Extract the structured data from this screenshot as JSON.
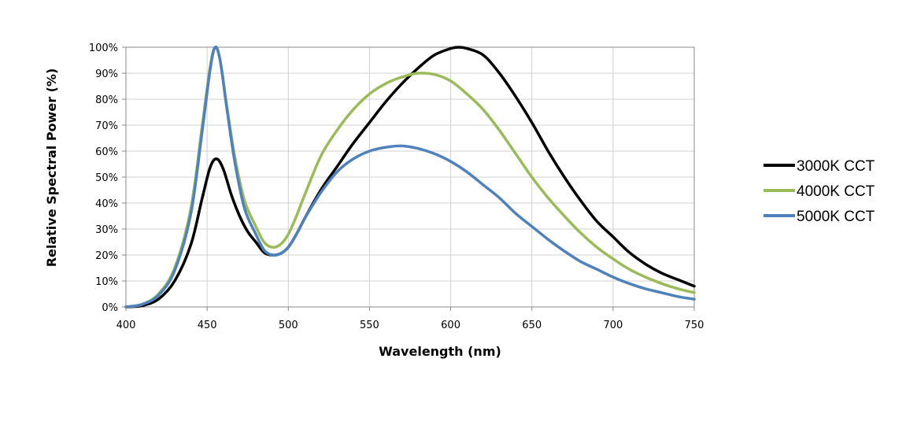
{
  "chart_data": {
    "type": "line",
    "title": "",
    "xlabel": "Wavelength (nm)",
    "ylabel": "Relative Spectral Power (%)",
    "xlim": [
      400,
      750
    ],
    "ylim": [
      0,
      100
    ],
    "x_ticks": [
      "400",
      "450",
      "500",
      "550",
      "600",
      "650",
      "700",
      "750"
    ],
    "y_ticks": [
      "0%",
      "10%",
      "20%",
      "30%",
      "40%",
      "50%",
      "60%",
      "70%",
      "80%",
      "90%",
      "100%"
    ],
    "grid": true,
    "legend_position": "right",
    "series": [
      {
        "name": "3000K CCT",
        "color": "#000000",
        "points": [
          [
            400,
            0
          ],
          [
            410,
            0.5
          ],
          [
            420,
            3
          ],
          [
            430,
            10
          ],
          [
            440,
            24
          ],
          [
            447,
            42
          ],
          [
            452,
            54
          ],
          [
            456,
            57
          ],
          [
            460,
            53
          ],
          [
            465,
            43
          ],
          [
            470,
            35
          ],
          [
            475,
            29
          ],
          [
            480,
            25
          ],
          [
            485,
            21
          ],
          [
            490,
            20
          ],
          [
            495,
            20.5
          ],
          [
            500,
            23
          ],
          [
            505,
            28
          ],
          [
            510,
            34
          ],
          [
            520,
            45
          ],
          [
            530,
            54
          ],
          [
            540,
            63
          ],
          [
            550,
            71
          ],
          [
            560,
            79
          ],
          [
            570,
            86
          ],
          [
            580,
            92
          ],
          [
            590,
            97
          ],
          [
            600,
            99.5
          ],
          [
            605,
            100
          ],
          [
            610,
            99.5
          ],
          [
            620,
            97
          ],
          [
            630,
            90
          ],
          [
            640,
            81
          ],
          [
            650,
            71
          ],
          [
            660,
            60
          ],
          [
            670,
            50
          ],
          [
            680,
            41
          ],
          [
            690,
            33
          ],
          [
            700,
            27
          ],
          [
            710,
            21
          ],
          [
            720,
            16.5
          ],
          [
            730,
            13
          ],
          [
            740,
            10.5
          ],
          [
            750,
            8
          ]
        ]
      },
      {
        "name": "4000K CCT",
        "color": "#9BBB59",
        "points": [
          [
            400,
            0
          ],
          [
            410,
            1
          ],
          [
            420,
            5
          ],
          [
            430,
            15
          ],
          [
            440,
            38
          ],
          [
            447,
            70
          ],
          [
            452,
            93
          ],
          [
            455,
            100
          ],
          [
            458,
            95
          ],
          [
            462,
            78
          ],
          [
            467,
            58
          ],
          [
            473,
            41
          ],
          [
            480,
            31
          ],
          [
            485,
            25
          ],
          [
            490,
            23
          ],
          [
            495,
            24
          ],
          [
            500,
            28
          ],
          [
            505,
            35
          ],
          [
            510,
            43
          ],
          [
            520,
            58
          ],
          [
            530,
            68
          ],
          [
            540,
            76
          ],
          [
            550,
            82
          ],
          [
            560,
            86
          ],
          [
            570,
            88.5
          ],
          [
            580,
            90
          ],
          [
            590,
            89.5
          ],
          [
            600,
            87
          ],
          [
            610,
            82
          ],
          [
            620,
            76
          ],
          [
            630,
            68
          ],
          [
            640,
            59
          ],
          [
            650,
            50
          ],
          [
            660,
            42
          ],
          [
            670,
            35
          ],
          [
            680,
            28.5
          ],
          [
            690,
            23
          ],
          [
            700,
            18.5
          ],
          [
            710,
            14.5
          ],
          [
            720,
            11.5
          ],
          [
            730,
            9
          ],
          [
            740,
            7
          ],
          [
            750,
            5.5
          ]
        ]
      },
      {
        "name": "5000K CCT",
        "color": "#4F81BD",
        "points": [
          [
            400,
            0
          ],
          [
            410,
            1
          ],
          [
            420,
            4.5
          ],
          [
            430,
            14
          ],
          [
            440,
            36
          ],
          [
            447,
            68
          ],
          [
            452,
            92
          ],
          [
            455,
            100
          ],
          [
            458,
            95
          ],
          [
            462,
            77
          ],
          [
            467,
            56
          ],
          [
            473,
            38
          ],
          [
            480,
            28
          ],
          [
            485,
            22
          ],
          [
            490,
            20
          ],
          [
            495,
            20.5
          ],
          [
            500,
            23
          ],
          [
            505,
            28
          ],
          [
            510,
            34
          ],
          [
            520,
            44
          ],
          [
            530,
            52
          ],
          [
            540,
            57
          ],
          [
            550,
            60
          ],
          [
            560,
            61.5
          ],
          [
            570,
            62
          ],
          [
            580,
            61
          ],
          [
            590,
            59
          ],
          [
            600,
            56
          ],
          [
            610,
            52
          ],
          [
            620,
            47
          ],
          [
            630,
            42
          ],
          [
            640,
            36
          ],
          [
            650,
            31
          ],
          [
            660,
            26
          ],
          [
            670,
            21.5
          ],
          [
            680,
            17.5
          ],
          [
            690,
            14.5
          ],
          [
            700,
            11.5
          ],
          [
            710,
            9
          ],
          [
            720,
            7
          ],
          [
            730,
            5.5
          ],
          [
            740,
            4
          ],
          [
            750,
            3
          ]
        ]
      }
    ]
  }
}
